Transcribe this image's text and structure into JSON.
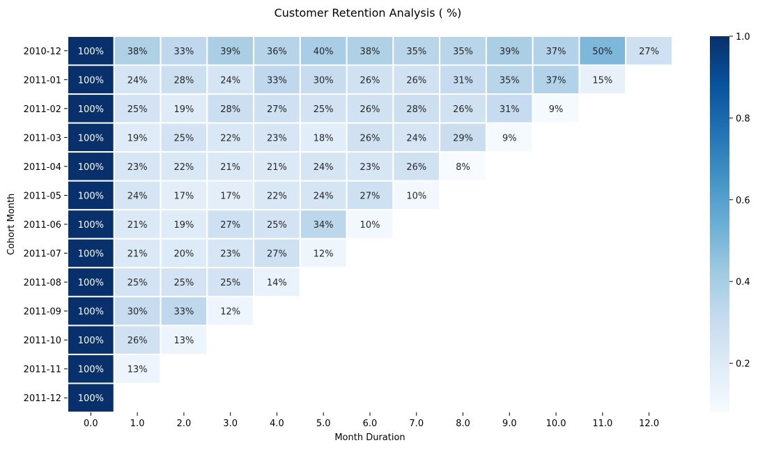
{
  "chart_data": {
    "type": "heatmap",
    "title": "Customer Retention Analysis ( %)",
    "xlabel": "Month Duration",
    "ylabel": "Cohort Month",
    "x_categories": [
      "0.0",
      "1.0",
      "2.0",
      "3.0",
      "4.0",
      "5.0",
      "6.0",
      "7.0",
      "8.0",
      "9.0",
      "10.0",
      "11.0",
      "12.0"
    ],
    "y_categories": [
      "2010-12",
      "2011-01",
      "2011-02",
      "2011-03",
      "2011-04",
      "2011-05",
      "2011-06",
      "2011-07",
      "2011-08",
      "2011-09",
      "2011-10",
      "2011-11",
      "2011-12"
    ],
    "values": [
      [
        100,
        38,
        33,
        39,
        36,
        40,
        38,
        35,
        35,
        39,
        37,
        50,
        27
      ],
      [
        100,
        24,
        28,
        24,
        33,
        30,
        26,
        26,
        31,
        35,
        37,
        15,
        null
      ],
      [
        100,
        25,
        19,
        28,
        27,
        25,
        26,
        28,
        26,
        31,
        9,
        null,
        null
      ],
      [
        100,
        19,
        25,
        22,
        23,
        18,
        26,
        24,
        29,
        9,
        null,
        null,
        null
      ],
      [
        100,
        23,
        22,
        21,
        21,
        24,
        23,
        26,
        8,
        null,
        null,
        null,
        null
      ],
      [
        100,
        24,
        17,
        17,
        22,
        24,
        27,
        10,
        null,
        null,
        null,
        null,
        null
      ],
      [
        100,
        21,
        19,
        27,
        25,
        34,
        10,
        null,
        null,
        null,
        null,
        null,
        null
      ],
      [
        100,
        21,
        20,
        23,
        27,
        12,
        null,
        null,
        null,
        null,
        null,
        null,
        null
      ],
      [
        100,
        25,
        25,
        25,
        14,
        null,
        null,
        null,
        null,
        null,
        null,
        null,
        null
      ],
      [
        100,
        30,
        33,
        12,
        null,
        null,
        null,
        null,
        null,
        null,
        null,
        null,
        null
      ],
      [
        100,
        26,
        13,
        null,
        null,
        null,
        null,
        null,
        null,
        null,
        null,
        null,
        null
      ],
      [
        100,
        13,
        null,
        null,
        null,
        null,
        null,
        null,
        null,
        null,
        null,
        null,
        null
      ],
      [
        100,
        null,
        null,
        null,
        null,
        null,
        null,
        null,
        null,
        null,
        null,
        null,
        null
      ]
    ],
    "value_format": "percent",
    "colormap": "Blues",
    "color_scale_range": [
      0.08,
      1.0
    ],
    "colorbar": {
      "ticks": [
        "0.2",
        "0.4",
        "0.6",
        "0.8",
        "1.0"
      ],
      "tick_values": [
        0.2,
        0.4,
        0.6,
        0.8,
        1.0
      ]
    },
    "cell_border_color": "#ffffff",
    "grid": false,
    "colors": {
      "light_text": "#ffffff",
      "dark_text": "#262626",
      "axis": "#000000"
    }
  }
}
